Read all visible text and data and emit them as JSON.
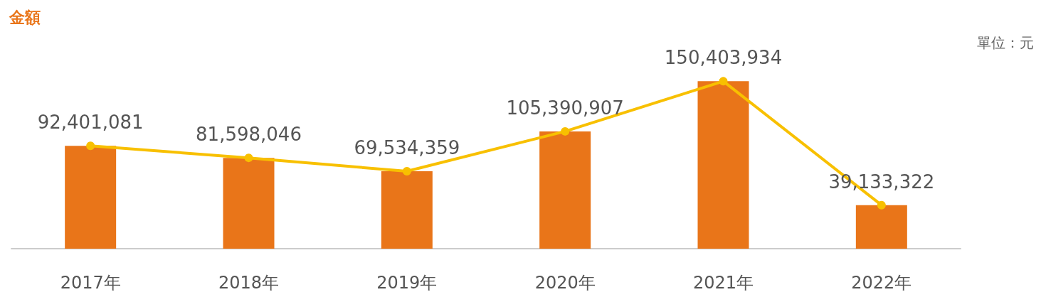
{
  "chart_data": {
    "type": "bar",
    "title": "金額",
    "annotations": [
      "單位：元"
    ],
    "categories": [
      "2017年",
      "2018年",
      "2019年",
      "2020年",
      "2021年",
      "2022年"
    ],
    "series": [
      {
        "color": "#e97519",
        "values": [
          92401081,
          81598046,
          69534359,
          105390907,
          150403934,
          39133322
        ]
      },
      {
        "type": "line",
        "color": "#f8c000",
        "values": [
          92401081,
          81598046,
          69534359,
          105390907,
          150403934,
          39133322
        ],
        "value_labels": [
          "92,401,081",
          "81,598,046",
          "69,534,359",
          "105,390,907",
          "150,403,934",
          "39,133,322"
        ]
      }
    ],
    "marker": "circle"
  }
}
